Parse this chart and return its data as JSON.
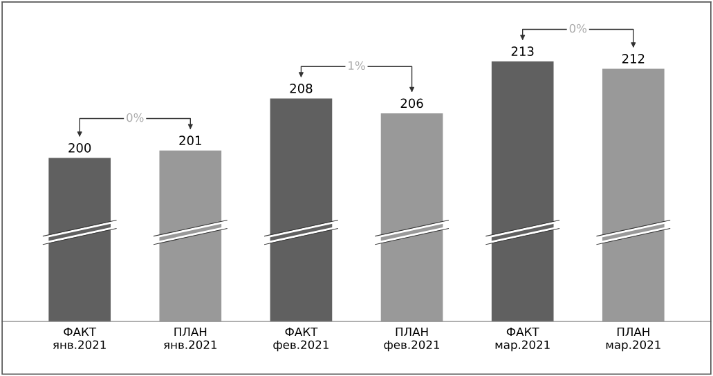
{
  "chart_data": {
    "type": "bar",
    "categories": [
      "ФАКТ\nянв.2021",
      "ПЛАН\nянв.2021",
      "ФАКТ\nфев.2021",
      "ПЛАН\nфев.2021",
      "ФАКТ\nмар.2021",
      "ПЛАН\nмар.2021"
    ],
    "values": [
      200,
      201,
      208,
      206,
      213,
      212
    ],
    "colors": [
      "#606060",
      "#999999",
      "#606060",
      "#999999",
      "#606060",
      "#999999"
    ],
    "ylim": [
      178,
      221
    ],
    "data_labels": true,
    "annotations": [
      "0%",
      "1%",
      "0%"
    ],
    "grid": false,
    "legend": false
  }
}
